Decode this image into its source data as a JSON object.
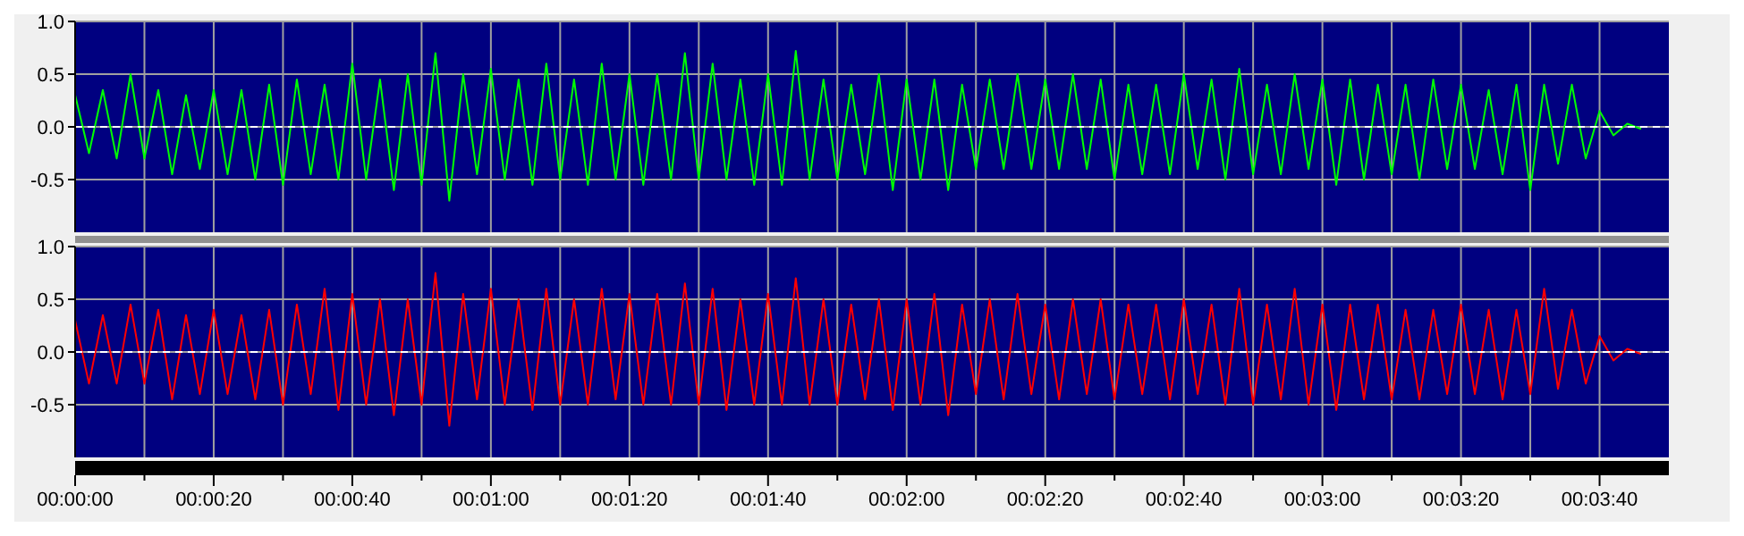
{
  "chart_data": [
    {
      "type": "line",
      "x": [
        0,
        2,
        4,
        6,
        8,
        10,
        12,
        14,
        16,
        18,
        20,
        22,
        24,
        26,
        28,
        30,
        32,
        34,
        36,
        38,
        40,
        42,
        44,
        46,
        48,
        50,
        52,
        54,
        56,
        58,
        60,
        62,
        64,
        66,
        68,
        70,
        72,
        74,
        76,
        78,
        80,
        82,
        84,
        86,
        88,
        90,
        92,
        94,
        96,
        98,
        100,
        102,
        104,
        106,
        108,
        110,
        112,
        114,
        116,
        118,
        120,
        122,
        124,
        126,
        128,
        130,
        132,
        134,
        136,
        138,
        140,
        142,
        144,
        146,
        148,
        150,
        152,
        154,
        156,
        158,
        160,
        162,
        164,
        166,
        168,
        170,
        172,
        174,
        176,
        178,
        180,
        182,
        184,
        186,
        188,
        190,
        192,
        194,
        196,
        198,
        200,
        202,
        204,
        206,
        208,
        210,
        212,
        214,
        216,
        218,
        220,
        222,
        224,
        226
      ],
      "series": [
        {
          "color": "#00ff00",
          "values": [
            0.3,
            -0.25,
            0.35,
            -0.3,
            0.5,
            -0.3,
            0.35,
            -0.45,
            0.3,
            -0.4,
            0.35,
            -0.45,
            0.35,
            -0.5,
            0.4,
            -0.55,
            0.45,
            -0.45,
            0.4,
            -0.5,
            0.6,
            -0.5,
            0.45,
            -0.6,
            0.5,
            -0.55,
            0.7,
            -0.7,
            0.5,
            -0.45,
            0.55,
            -0.5,
            0.45,
            -0.55,
            0.6,
            -0.5,
            0.45,
            -0.55,
            0.6,
            -0.5,
            0.5,
            -0.55,
            0.5,
            -0.5,
            0.7,
            -0.5,
            0.6,
            -0.5,
            0.45,
            -0.55,
            0.5,
            -0.55,
            0.72,
            -0.5,
            0.45,
            -0.5,
            0.4,
            -0.45,
            0.5,
            -0.6,
            0.45,
            -0.5,
            0.45,
            -0.6,
            0.4,
            -0.4,
            0.45,
            -0.4,
            0.5,
            -0.4,
            0.45,
            -0.4,
            0.5,
            -0.4,
            0.45,
            -0.5,
            0.4,
            -0.45,
            0.4,
            -0.45,
            0.5,
            -0.4,
            0.45,
            -0.5,
            0.55,
            -0.45,
            0.4,
            -0.45,
            0.5,
            -0.4,
            0.45,
            -0.55,
            0.45,
            -0.5,
            0.4,
            -0.45,
            0.4,
            -0.5,
            0.45,
            -0.4,
            0.4,
            -0.4,
            0.35,
            -0.45,
            0.4,
            -0.6,
            0.4,
            -0.35,
            0.4,
            -0.3,
            0.15,
            -0.08,
            0.03,
            -0.02
          ]
        }
      ],
      "xlim": [
        0,
        230
      ],
      "ylim": [
        -1,
        1
      ],
      "xticks": [
        0,
        10,
        20,
        30,
        40,
        50,
        60,
        70,
        80,
        90,
        100,
        110,
        120,
        130,
        140,
        150,
        160,
        170,
        180,
        190,
        200,
        210,
        220
      ],
      "yticks": [
        {
          "value": 1,
          "label": "1.0"
        },
        {
          "value": 0.5,
          "label": "0.5"
        },
        {
          "value": 0,
          "label": "0.0"
        },
        {
          "value": -0.5,
          "label": "-0.5"
        }
      ],
      "grid": true,
      "tick_labels": "y",
      "marker": "none",
      "line_style": "solid",
      "ref_lines": [
        {
          "axis": "y",
          "value": 0,
          "color": "#ffffff",
          "line_style": "dashed"
        }
      ]
    },
    {
      "type": "line",
      "x": [
        0,
        2,
        4,
        6,
        8,
        10,
        12,
        14,
        16,
        18,
        20,
        22,
        24,
        26,
        28,
        30,
        32,
        34,
        36,
        38,
        40,
        42,
        44,
        46,
        48,
        50,
        52,
        54,
        56,
        58,
        60,
        62,
        64,
        66,
        68,
        70,
        72,
        74,
        76,
        78,
        80,
        82,
        84,
        86,
        88,
        90,
        92,
        94,
        96,
        98,
        100,
        102,
        104,
        106,
        108,
        110,
        112,
        114,
        116,
        118,
        120,
        122,
        124,
        126,
        128,
        130,
        132,
        134,
        136,
        138,
        140,
        142,
        144,
        146,
        148,
        150,
        152,
        154,
        156,
        158,
        160,
        162,
        164,
        166,
        168,
        170,
        172,
        174,
        176,
        178,
        180,
        182,
        184,
        186,
        188,
        190,
        192,
        194,
        196,
        198,
        200,
        202,
        204,
        206,
        208,
        210,
        212,
        214,
        216,
        218,
        220,
        222,
        224,
        226
      ],
      "series": [
        {
          "color": "#ff0000",
          "values": [
            0.3,
            -0.3,
            0.35,
            -0.3,
            0.45,
            -0.3,
            0.4,
            -0.45,
            0.35,
            -0.4,
            0.4,
            -0.4,
            0.35,
            -0.45,
            0.4,
            -0.5,
            0.45,
            -0.4,
            0.6,
            -0.55,
            0.55,
            -0.5,
            0.5,
            -0.6,
            0.5,
            -0.5,
            0.75,
            -0.7,
            0.55,
            -0.45,
            0.6,
            -0.5,
            0.5,
            -0.55,
            0.6,
            -0.5,
            0.5,
            -0.5,
            0.6,
            -0.45,
            0.55,
            -0.5,
            0.55,
            -0.5,
            0.65,
            -0.5,
            0.6,
            -0.55,
            0.5,
            -0.5,
            0.55,
            -0.5,
            0.7,
            -0.5,
            0.5,
            -0.5,
            0.45,
            -0.45,
            0.5,
            -0.55,
            0.5,
            -0.5,
            0.55,
            -0.6,
            0.45,
            -0.4,
            0.5,
            -0.45,
            0.55,
            -0.4,
            0.45,
            -0.45,
            0.5,
            -0.4,
            0.5,
            -0.45,
            0.45,
            -0.4,
            0.45,
            -0.45,
            0.5,
            -0.4,
            0.45,
            -0.5,
            0.6,
            -0.5,
            0.45,
            -0.45,
            0.6,
            -0.5,
            0.45,
            -0.55,
            0.45,
            -0.45,
            0.45,
            -0.45,
            0.4,
            -0.45,
            0.4,
            -0.4,
            0.45,
            -0.4,
            0.4,
            -0.45,
            0.4,
            -0.4,
            0.6,
            -0.35,
            0.4,
            -0.3,
            0.15,
            -0.08,
            0.03,
            -0.02
          ]
        }
      ],
      "xlim": [
        0,
        230
      ],
      "ylim": [
        -1,
        1
      ],
      "xticks": [
        {
          "value": 0,
          "label": "00:00:00"
        },
        {
          "value": 10,
          "label": null
        },
        {
          "value": 20,
          "label": "00:00:20"
        },
        {
          "value": 30,
          "label": null
        },
        {
          "value": 40,
          "label": "00:00:40"
        },
        {
          "value": 50,
          "label": null
        },
        {
          "value": 60,
          "label": "00:01:00"
        },
        {
          "value": 70,
          "label": null
        },
        {
          "value": 80,
          "label": "00:01:20"
        },
        {
          "value": 90,
          "label": null
        },
        {
          "value": 100,
          "label": "00:01:40"
        },
        {
          "value": 110,
          "label": null
        },
        {
          "value": 120,
          "label": "00:02:00"
        },
        {
          "value": 130,
          "label": null
        },
        {
          "value": 140,
          "label": "00:02:20"
        },
        {
          "value": 150,
          "label": null
        },
        {
          "value": 160,
          "label": "00:02:40"
        },
        {
          "value": 170,
          "label": null
        },
        {
          "value": 180,
          "label": "00:03:00"
        },
        {
          "value": 190,
          "label": null
        },
        {
          "value": 200,
          "label": "00:03:20"
        },
        {
          "value": 210,
          "label": null
        },
        {
          "value": 220,
          "label": "00:03:40"
        }
      ],
      "yticks": [
        {
          "value": 1,
          "label": "1.0"
        },
        {
          "value": 0.5,
          "label": "0.5"
        },
        {
          "value": 0,
          "label": "0.0"
        },
        {
          "value": -0.5,
          "label": "-0.5"
        }
      ],
      "grid": true,
      "marker": "none",
      "line_style": "solid",
      "ref_lines": [
        {
          "axis": "y",
          "value": 0,
          "color": "#ffffff",
          "line_style": "dashed"
        }
      ]
    }
  ]
}
